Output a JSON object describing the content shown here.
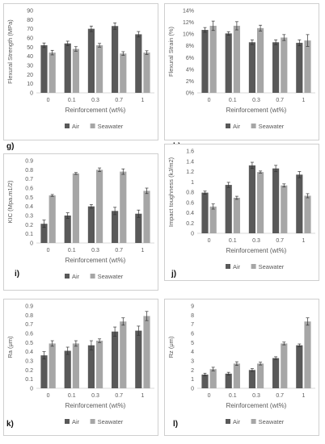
{
  "colors": {
    "air": "#595959",
    "seawater": "#a6a6a6",
    "axis": "#d9d9d9",
    "text": "#595959"
  },
  "chart_data": [
    {
      "type": "bar",
      "panel_label": "g)",
      "categories": [
        "0",
        "0.1",
        "0.3",
        "0.7",
        "1"
      ],
      "ylabel": "Flexural Strength (MPa)",
      "xlabel": "Reinforcement (wt%)",
      "yticks": [
        "0",
        "10",
        "20",
        "30",
        "40",
        "50",
        "60",
        "70",
        "80",
        "90"
      ],
      "ylim": [
        0,
        90
      ],
      "series": [
        {
          "name": "Air",
          "values": [
            52,
            54,
            70,
            73,
            64
          ],
          "errors": [
            2.5,
            2.5,
            3,
            3.5,
            3
          ]
        },
        {
          "name": "Seawater",
          "values": [
            44,
            48,
            52,
            43,
            44
          ],
          "errors": [
            2.5,
            2.5,
            2,
            2,
            2
          ]
        }
      ]
    },
    {
      "type": "bar",
      "panel_label": "h)",
      "categories": [
        "0",
        "0.1",
        "0.3",
        "0.7",
        "1"
      ],
      "ylabel": "Flexural Strain (%)",
      "xlabel": "Reinforcement (wt%)",
      "yticks": [
        "0%",
        "2%",
        "4%",
        "6%",
        "8%",
        "10%",
        "12%",
        "14%"
      ],
      "ylim": [
        0,
        14
      ],
      "series": [
        {
          "name": "Air",
          "values": [
            10.7,
            10.1,
            8.6,
            8.6,
            8.5
          ],
          "errors": [
            0.4,
            0.3,
            0.4,
            0.4,
            0.5
          ]
        },
        {
          "name": "Seawater",
          "values": [
            11.4,
            11.4,
            11.0,
            9.4,
            8.9
          ],
          "errors": [
            0.8,
            0.7,
            0.5,
            0.5,
            1.0
          ]
        }
      ]
    },
    {
      "type": "bar",
      "panel_label": "i)",
      "categories": [
        "0",
        "0.1",
        "0.3",
        "0.7",
        "1"
      ],
      "ylabel": "KIC (Mpa.m1/2)",
      "xlabel": "Reinforcement (wt%)",
      "yticks": [
        "0",
        "0.1",
        "0.2",
        "0.3",
        "0.4",
        "0.5",
        "0.6",
        "0.7",
        "0.8",
        "0.9"
      ],
      "ylim": [
        0,
        0.9
      ],
      "series": [
        {
          "name": "Air",
          "values": [
            0.21,
            0.3,
            0.4,
            0.35,
            0.32
          ],
          "errors": [
            0.04,
            0.03,
            0.02,
            0.04,
            0.04
          ]
        },
        {
          "name": "Seawater",
          "values": [
            0.52,
            0.76,
            0.8,
            0.78,
            0.57
          ],
          "errors": [
            0.01,
            0.01,
            0.02,
            0.03,
            0.03
          ]
        }
      ]
    },
    {
      "type": "bar",
      "panel_label": "j)",
      "categories": [
        "0",
        "0.1",
        "0.3",
        "0.7",
        "1"
      ],
      "ylabel": "Impact toughness (kJ/m2)",
      "xlabel": "Reinforcement (wt%)",
      "yticks": [
        "0",
        "0.2",
        "0.4",
        "0.6",
        "0.8",
        "1",
        "1.2",
        "1.4",
        "1.6"
      ],
      "ylim": [
        0,
        1.6
      ],
      "series": [
        {
          "name": "Air",
          "values": [
            0.79,
            0.94,
            1.32,
            1.26,
            1.14
          ],
          "errors": [
            0.03,
            0.05,
            0.06,
            0.06,
            0.06
          ]
        },
        {
          "name": "Seawater",
          "values": [
            0.52,
            0.69,
            1.19,
            0.93,
            0.73
          ],
          "errors": [
            0.05,
            0.03,
            0.02,
            0.03,
            0.04
          ]
        }
      ]
    },
    {
      "type": "bar",
      "panel_label": "k)",
      "categories": [
        "0",
        "0.1",
        "0.3",
        "0.7",
        "1"
      ],
      "ylabel": "Ra (μm)",
      "xlabel": "Reinforcement (wt%)",
      "yticks": [
        "0",
        "0.1",
        "0.2",
        "0.3",
        "0.4",
        "0.5",
        "0.6",
        "0.7",
        "0.8",
        "0.9"
      ],
      "ylim": [
        0,
        0.9
      ],
      "series": [
        {
          "name": "Air",
          "values": [
            0.36,
            0.41,
            0.47,
            0.62,
            0.63
          ],
          "errors": [
            0.04,
            0.04,
            0.05,
            0.05,
            0.05
          ]
        },
        {
          "name": "Seawater",
          "values": [
            0.49,
            0.49,
            0.52,
            0.73,
            0.79
          ],
          "errors": [
            0.03,
            0.03,
            0.02,
            0.04,
            0.05
          ]
        }
      ]
    },
    {
      "type": "bar",
      "panel_label": "l)",
      "categories": [
        "0",
        "0.1",
        "0.3",
        "0.7",
        "1"
      ],
      "ylabel": "Rz (μm)",
      "xlabel": "Reinforcement (wt%)",
      "yticks": [
        "0",
        "1",
        "2",
        "3",
        "4",
        "5",
        "6",
        "7",
        "8",
        "9"
      ],
      "ylim": [
        0,
        9
      ],
      "series": [
        {
          "name": "Air",
          "values": [
            1.5,
            1.6,
            2.0,
            3.3,
            4.7
          ],
          "errors": [
            0.15,
            0.15,
            0.15,
            0.15,
            0.15
          ]
        },
        {
          "name": "Seawater",
          "values": [
            2.1,
            2.7,
            2.7,
            4.9,
            7.3
          ],
          "errors": [
            0.2,
            0.2,
            0.15,
            0.15,
            0.4
          ]
        }
      ]
    }
  ]
}
